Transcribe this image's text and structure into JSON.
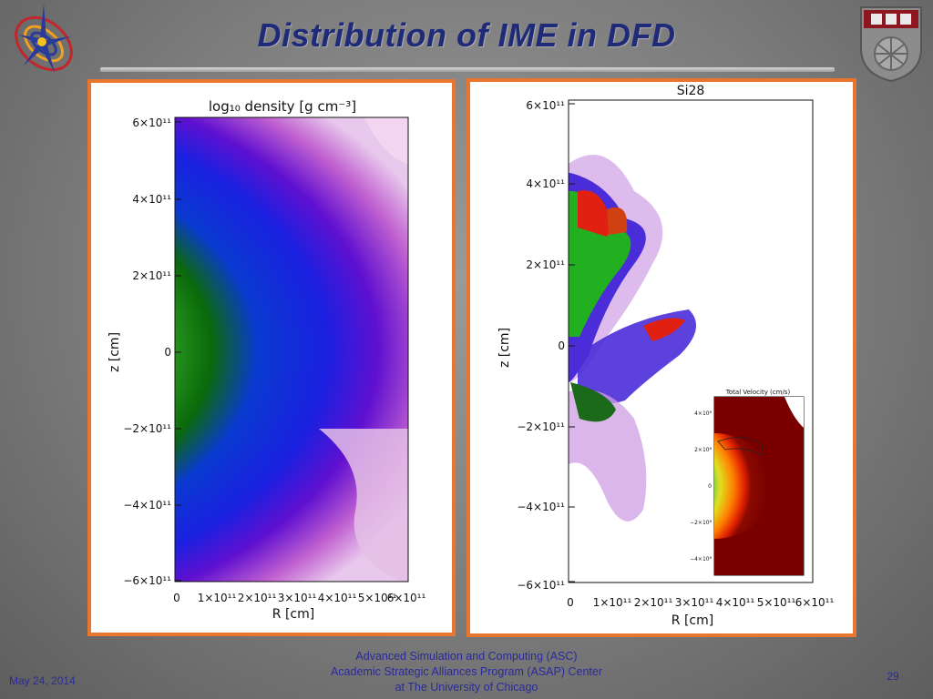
{
  "slide": {
    "title": "Distribution of IME  in DFD",
    "page_number": "29",
    "date": "May 24, 2014",
    "footer_lines": [
      "Advanced Simulation and Computing (ASC)",
      "Academic Strategic Alliances Program (ASAP) Center",
      "at The University of Chicago"
    ]
  },
  "left_plot": {
    "title": "log₁₀ density [g cm⁻³]",
    "xlabel": "R [cm]",
    "ylabel": "z [cm]",
    "y_ticks": [
      "6×10¹¹",
      "4×10¹¹",
      "2×10¹¹",
      "0",
      "−2×10¹¹",
      "−4×10¹¹",
      "−6×10¹¹"
    ],
    "x_ticks": [
      "0",
      "1×10¹¹",
      "2×10¹¹",
      "3×10¹¹",
      "4×10¹¹",
      "5×10¹¹",
      "6×10¹¹"
    ]
  },
  "right_plot": {
    "title": "Si28",
    "xlabel": "R [cm]",
    "ylabel": "z [cm]",
    "y_ticks": [
      "6×10¹¹",
      "4×10¹¹",
      "2×10¹¹",
      "0",
      "−2×10¹¹",
      "−4×10¹¹",
      "−6×10¹¹"
    ],
    "x_ticks": [
      "0",
      "1×10¹¹",
      "2×10¹¹",
      "3×10¹¹",
      "4×10¹¹",
      "5×10¹¹",
      "6×10¹¹"
    ],
    "inset": {
      "title": "Total Velocity (cm/s)",
      "y_ticks": [
        "4×10⁸",
        "2×10⁸",
        "0",
        "−2×10⁸",
        "−4×10⁸"
      ]
    }
  },
  "colors": {
    "title": "#1f2a78",
    "panel_border": "#e8762e",
    "footer_text": "#2a2a9a"
  },
  "icons": [
    "flash-center-logo",
    "university-of-chicago-shield"
  ]
}
